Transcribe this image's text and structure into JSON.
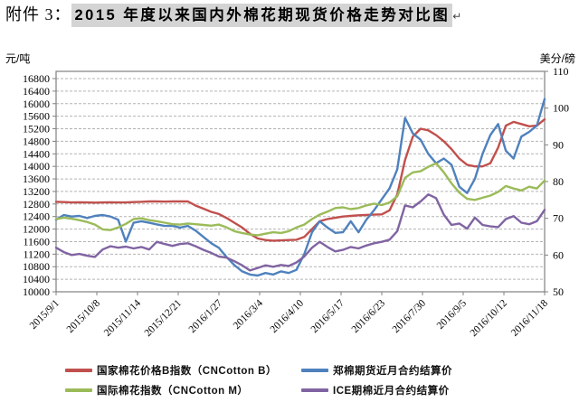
{
  "title": {
    "prefix": "附件 3：",
    "text": "2015 年度以来国内外棉花期现货价格走势对比图",
    "paragraph_mark": "↵",
    "highlight_color": "#d4d4d4"
  },
  "chart_data": {
    "type": "line",
    "title": "2015 年度以来国内外棉花期现货价格走势对比图",
    "grid": "horizontal-dashed",
    "legend_position": "bottom",
    "left_axis": {
      "label": "元/吨",
      "min": 10000,
      "max": 16800,
      "step": 400,
      "ticks": [
        16800,
        16400,
        16000,
        15600,
        15200,
        14800,
        14400,
        14000,
        13600,
        13200,
        12800,
        12400,
        12000,
        11600,
        11200,
        10800,
        10400,
        10000
      ]
    },
    "right_axis": {
      "label": "美分/磅",
      "min": 50,
      "max": 110,
      "step": 10,
      "ticks": [
        110,
        100,
        90,
        80,
        70,
        60,
        50
      ]
    },
    "x_axis": {
      "tick_labels": [
        "2015/9/1",
        "2015/10/8",
        "2015/11/14",
        "2015/12/21",
        "2016/1/27",
        "2016/3/4",
        "2016/4/10",
        "2016/5/17",
        "2016/6/23",
        "2016/7/30",
        "2016/9/5",
        "2016/10/12",
        "2016/11/18"
      ],
      "tick_interval_days": 37,
      "total_days": 444
    },
    "series": [
      {
        "name": "国家棉花价格B指数（CNCotton B）",
        "color": "#C0504D",
        "axis": "left",
        "unit": "元/吨",
        "values": [
          12870,
          12860,
          12850,
          12855,
          12850,
          12845,
          12850,
          12855,
          12850,
          12850,
          12860,
          12870,
          12880,
          12880,
          12875,
          12880,
          12885,
          12880,
          12750,
          12650,
          12550,
          12480,
          12350,
          12200,
          12050,
          11850,
          11700,
          11650,
          11630,
          11640,
          11650,
          11660,
          11750,
          12000,
          12250,
          12320,
          12360,
          12400,
          12420,
          12440,
          12450,
          12460,
          12470,
          12600,
          13100,
          14200,
          14950,
          15200,
          15150,
          15000,
          14800,
          14550,
          14250,
          14050,
          14000,
          14000,
          14100,
          14600,
          15300,
          15420,
          15350,
          15280,
          15300,
          15500
        ]
      },
      {
        "name": "郑棉期货近月合约结算价",
        "color": "#4F81BD",
        "axis": "left",
        "unit": "元/吨",
        "values": [
          12300,
          12450,
          12400,
          12420,
          12350,
          12420,
          12450,
          12400,
          12300,
          11600,
          12200,
          12250,
          12200,
          12150,
          12100,
          12100,
          12050,
          12100,
          11950,
          11750,
          11550,
          11400,
          11100,
          10850,
          10650,
          10550,
          10520,
          10600,
          10550,
          10650,
          10600,
          10700,
          11200,
          11900,
          12250,
          12050,
          11880,
          11900,
          12250,
          11900,
          12300,
          12600,
          12950,
          13300,
          13900,
          15550,
          15050,
          14850,
          14400,
          14100,
          14250,
          14050,
          13350,
          13150,
          13600,
          14400,
          15000,
          15350,
          14500,
          14250,
          14950,
          15100,
          15300,
          16150
        ]
      },
      {
        "name": "国际棉花指数（CNCotton M）",
        "color": "#9BBB59",
        "axis": "right",
        "unit": "美分/磅",
        "values": [
          69.8,
          70.2,
          69.9,
          69.5,
          69.0,
          68.3,
          67.0,
          66.8,
          67.5,
          68.5,
          69.8,
          70.0,
          69.5,
          69.2,
          68.8,
          68.4,
          68.3,
          68.6,
          68.4,
          68.2,
          68.0,
          68.3,
          67.5,
          66.5,
          66.0,
          65.6,
          65.4,
          65.8,
          66.2,
          66.0,
          66.5,
          67.5,
          68.3,
          69.8,
          71.0,
          71.8,
          72.8,
          73.0,
          72.5,
          72.8,
          73.5,
          74.0,
          73.6,
          74.3,
          76.0,
          81.0,
          82.5,
          82.8,
          84.0,
          85.0,
          82.5,
          79.5,
          77.0,
          75.3,
          75.0,
          75.6,
          76.2,
          77.2,
          78.8,
          78.1,
          77.6,
          78.6,
          78.1,
          80.3
        ]
      },
      {
        "name": "ICE期棉近月合约结算价",
        "color": "#8064A2",
        "axis": "right",
        "unit": "美分/磅",
        "values": [
          62.0,
          60.8,
          60.0,
          60.3,
          59.8,
          59.5,
          61.5,
          62.4,
          62.0,
          62.3,
          61.8,
          62.2,
          61.5,
          63.6,
          63.0,
          62.5,
          63.0,
          63.2,
          62.4,
          61.4,
          60.6,
          59.6,
          59.3,
          58.3,
          57.2,
          55.8,
          56.5,
          57.2,
          56.8,
          57.3,
          57.0,
          58.0,
          59.6,
          62.0,
          63.6,
          62.2,
          61.0,
          61.4,
          62.2,
          61.8,
          62.6,
          63.2,
          63.6,
          64.2,
          66.5,
          73.5,
          73.0,
          74.6,
          76.5,
          75.5,
          71.0,
          68.2,
          68.6,
          67.2,
          70.2,
          68.2,
          67.8,
          67.6,
          69.8,
          70.6,
          68.8,
          68.4,
          69.2,
          72.3
        ]
      }
    ]
  }
}
